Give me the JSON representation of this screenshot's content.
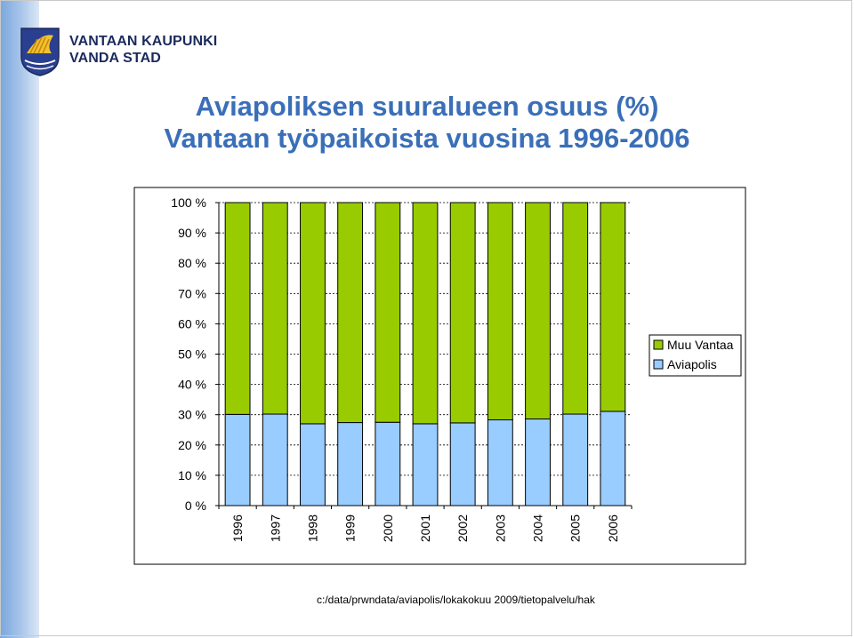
{
  "header": {
    "org_line1": "VANTAAN KAUPUNKI",
    "org_line2": "VANDA STAD"
  },
  "title": {
    "line1": "Aviapoliksen suuralueen osuus (%)",
    "line2": "Vantaan työpaikoista vuosina 1996-2006"
  },
  "footer": {
    "path": "c:/data/prwndata/aviapolis/lokakokuu 2009/tietopalvelu/hak"
  },
  "colors": {
    "accent": "#3a6fb8",
    "sidebar": "#7aa7dc",
    "muu_vantaa": "#99cc00",
    "aviapolis": "#99ccff"
  },
  "chart_data": {
    "type": "bar",
    "stacked": true,
    "percent": true,
    "categories": [
      "1996",
      "1997",
      "1998",
      "1999",
      "2000",
      "2001",
      "2002",
      "2003",
      "2004",
      "2005",
      "2006"
    ],
    "series": [
      {
        "name": "Aviapolis",
        "color": "#99ccff",
        "values": [
          30.1,
          30.2,
          27,
          27.4,
          27.5,
          27,
          27.3,
          28.3,
          28.6,
          30.2,
          31.1
        ]
      },
      {
        "name": "Muu Vantaa",
        "color": "#99cc00",
        "values": [
          69.9,
          69.8,
          73,
          72.6,
          72.5,
          73,
          72.7,
          71.7,
          71.4,
          69.8,
          68.9
        ]
      }
    ],
    "y_ticks": [
      "0 %",
      "10 %",
      "20 %",
      "30 %",
      "40 %",
      "50 %",
      "60 %",
      "70 %",
      "80 %",
      "90 %",
      "100 %"
    ],
    "ylim": [
      0,
      100
    ],
    "grid": true,
    "legend": {
      "position": "right",
      "items": [
        "Muu Vantaa",
        "Aviapolis"
      ]
    },
    "xlabel_orientation": "vertical"
  }
}
